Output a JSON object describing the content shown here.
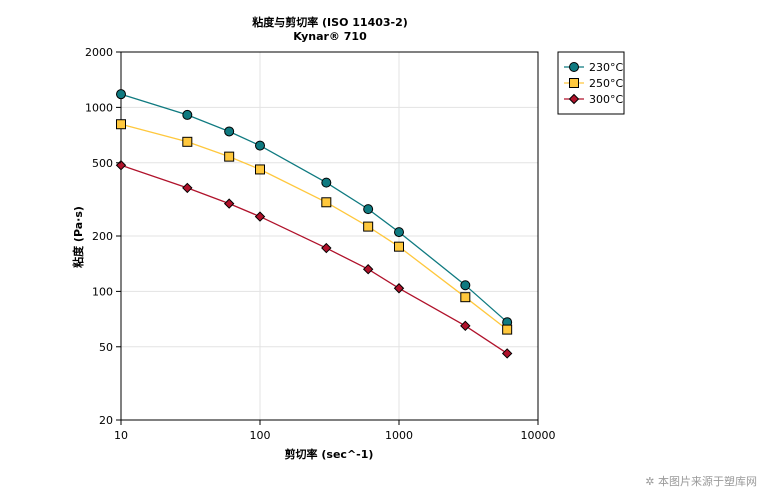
{
  "chart_data": {
    "type": "line",
    "title": "粘度与剪切率 (ISO 11403-2)",
    "subtitle": "Kynar® 710",
    "xlabel": "剪切率 (sec^-1)",
    "ylabel": "粘度 (Pa·s)",
    "xscale": "log",
    "yscale": "log",
    "xlim": [
      10,
      10000
    ],
    "ylim": [
      20,
      2000
    ],
    "xticks": [
      "10",
      "100",
      "1000",
      "10000"
    ],
    "yticks": [
      "20",
      "50",
      "100",
      "200",
      "500",
      "1000",
      "2000"
    ],
    "grid": true,
    "legend_position": "top-right, outside plot",
    "series": [
      {
        "name": "230°C",
        "color": "#0f7a80",
        "marker": "circle",
        "x": [
          10,
          30,
          60,
          100,
          300,
          600,
          1000,
          3000,
          6000
        ],
        "y": [
          1180,
          910,
          740,
          620,
          390,
          280,
          210,
          108,
          68
        ]
      },
      {
        "name": "250°C",
        "color": "#ffc83d",
        "marker": "square",
        "x": [
          10,
          30,
          60,
          100,
          300,
          600,
          1000,
          3000,
          6000
        ],
        "y": [
          810,
          650,
          540,
          460,
          305,
          225,
          175,
          93,
          62
        ]
      },
      {
        "name": "300°C",
        "color": "#b0122b",
        "marker": "diamond",
        "x": [
          10,
          30,
          60,
          100,
          300,
          600,
          1000,
          3000,
          6000
        ],
        "y": [
          485,
          365,
          300,
          255,
          172,
          132,
          104,
          65,
          46
        ]
      }
    ]
  },
  "watermark": {
    "text": "本图片来源于塑库网"
  }
}
